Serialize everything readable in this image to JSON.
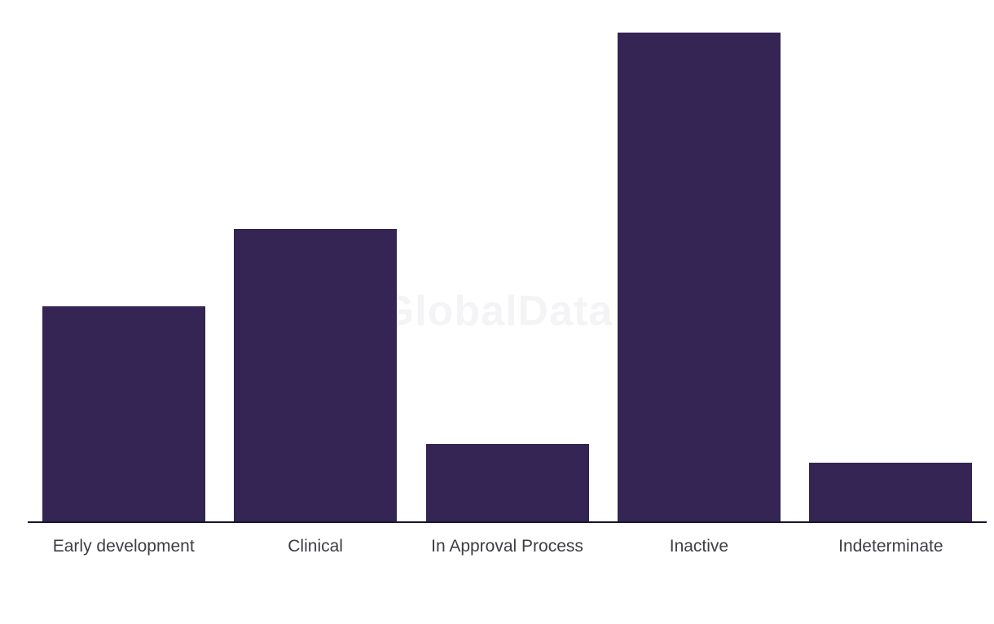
{
  "watermark": {
    "text": "GlobalData"
  },
  "colors": {
    "bar": "#342554",
    "axis_line": "#15152d",
    "label_text": "#3d3d44",
    "watermark_text": "#f4f4f6",
    "background": "#ffffff"
  },
  "chart_data": {
    "type": "bar",
    "orientation": "vertical",
    "title": "",
    "xlabel": "",
    "ylabel": "",
    "categories": [
      "Early development",
      "Clinical",
      "In Approval Process",
      "Inactive",
      "Indeterminate"
    ],
    "values": [
      264,
      359,
      95,
      600,
      72
    ],
    "value_note": "no y-axis, tick labels or data labels are shown; values are relative bar heights estimated from pixels",
    "ylim": [
      0,
      640
    ],
    "grid": false,
    "legend": false,
    "y_axis_visible": false,
    "x_axis_line": true,
    "watermark_behind_bars": true
  }
}
